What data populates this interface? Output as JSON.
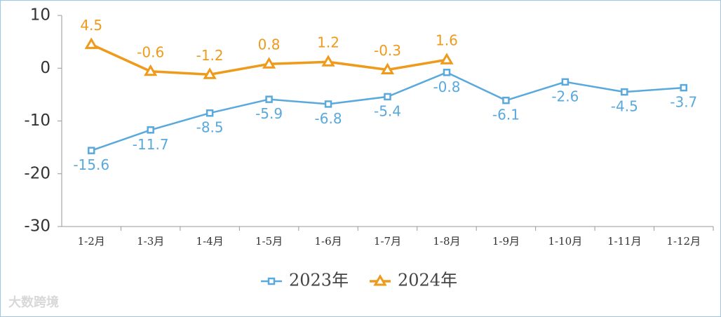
{
  "chart_data": {
    "type": "line",
    "categories": [
      "1-2月",
      "1-3月",
      "1-4月",
      "1-5月",
      "1-6月",
      "1-7月",
      "1-8月",
      "1-9月",
      "1-10月",
      "1-11月",
      "1-12月"
    ],
    "series": [
      {
        "name": "2023年",
        "color": "#5aa9dd",
        "marker": "square",
        "label_position": "below",
        "values": [
          -15.6,
          -11.7,
          -8.5,
          -5.9,
          -6.8,
          -5.4,
          -0.8,
          -6.1,
          -2.6,
          -4.5,
          -3.7
        ]
      },
      {
        "name": "2024年",
        "color": "#ee9a1b",
        "marker": "triangle",
        "label_position": "above",
        "values": [
          4.5,
          -0.6,
          -1.2,
          0.8,
          1.2,
          -0.3,
          1.6,
          null,
          null,
          null,
          null
        ]
      }
    ],
    "ylim": [
      -30,
      10
    ],
    "yticks": [
      10,
      0,
      -10,
      -20,
      -30
    ],
    "grid": false,
    "legend": "bottom",
    "watermark": "大数跨境"
  }
}
